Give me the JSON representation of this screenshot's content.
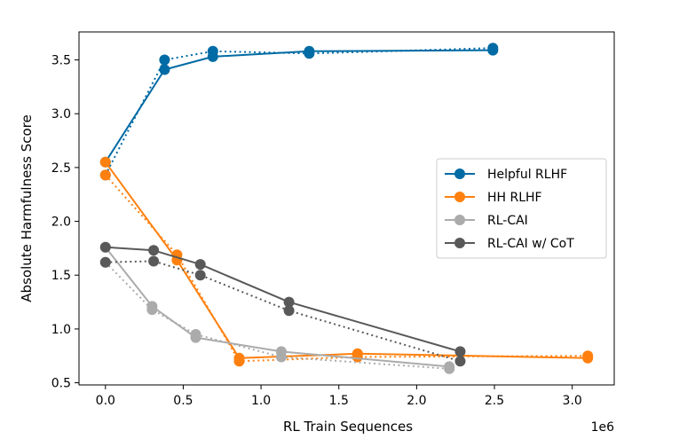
{
  "chart_data": {
    "type": "line",
    "xlabel": "RL Train Sequences",
    "ylabel": "Absolute Harmfulness Score",
    "x_offset_text": "1e6",
    "xlim": [
      -0.17,
      3.27
    ],
    "ylim": [
      0.48,
      3.76
    ],
    "x_ticks": [
      0.0,
      0.5,
      1.0,
      1.5,
      2.0,
      2.5,
      3.0
    ],
    "x_tick_labels": [
      "0.0",
      "0.5",
      "1.0",
      "1.5",
      "2.0",
      "2.5",
      "3.0"
    ],
    "y_ticks": [
      0.5,
      1.0,
      1.5,
      2.0,
      2.5,
      3.0,
      3.5
    ],
    "y_tick_labels": [
      "0.5",
      "1.0",
      "1.5",
      "2.0",
      "2.5",
      "3.0",
      "3.5"
    ],
    "grid": false,
    "legend_position": "center-right",
    "series": [
      {
        "name": "Helpful RLHF",
        "color": "#006ba4",
        "solid": {
          "x": [
            0.0,
            0.38,
            0.69,
            1.31,
            2.49
          ],
          "y": [
            2.55,
            3.41,
            3.53,
            3.58,
            3.59
          ]
        },
        "dotted": {
          "x": [
            0.0,
            0.38,
            0.69,
            1.31,
            2.49
          ],
          "y": [
            2.43,
            3.5,
            3.58,
            3.56,
            3.61
          ]
        }
      },
      {
        "name": "HH RLHF",
        "color": "#ff800e",
        "solid": {
          "x": [
            0.0,
            0.46,
            0.86,
            1.62,
            3.1
          ],
          "y": [
            2.55,
            1.64,
            0.73,
            0.77,
            0.73
          ]
        },
        "dotted": {
          "x": [
            0.0,
            0.46,
            0.86,
            1.62,
            3.1
          ],
          "y": [
            2.43,
            1.69,
            0.7,
            0.74,
            0.75
          ]
        }
      },
      {
        "name": "RL-CAI",
        "color": "#ababab",
        "solid": {
          "x": [
            0.0,
            0.3,
            0.58,
            1.13,
            2.21
          ],
          "y": [
            1.76,
            1.21,
            0.92,
            0.79,
            0.65
          ]
        },
        "dotted": {
          "x": [
            0.0,
            0.3,
            0.58,
            1.13,
            2.21
          ],
          "y": [
            1.62,
            1.18,
            0.95,
            0.74,
            0.63
          ]
        }
      },
      {
        "name": "RL-CAI w/ CoT",
        "color": "#595959",
        "solid": {
          "x": [
            0.0,
            0.31,
            0.61,
            1.18,
            2.28
          ],
          "y": [
            1.76,
            1.73,
            1.6,
            1.25,
            0.79
          ]
        },
        "dotted": {
          "x": [
            0.0,
            0.31,
            0.61,
            1.18,
            2.28
          ],
          "y": [
            1.62,
            1.63,
            1.5,
            1.17,
            0.7
          ]
        }
      }
    ]
  }
}
